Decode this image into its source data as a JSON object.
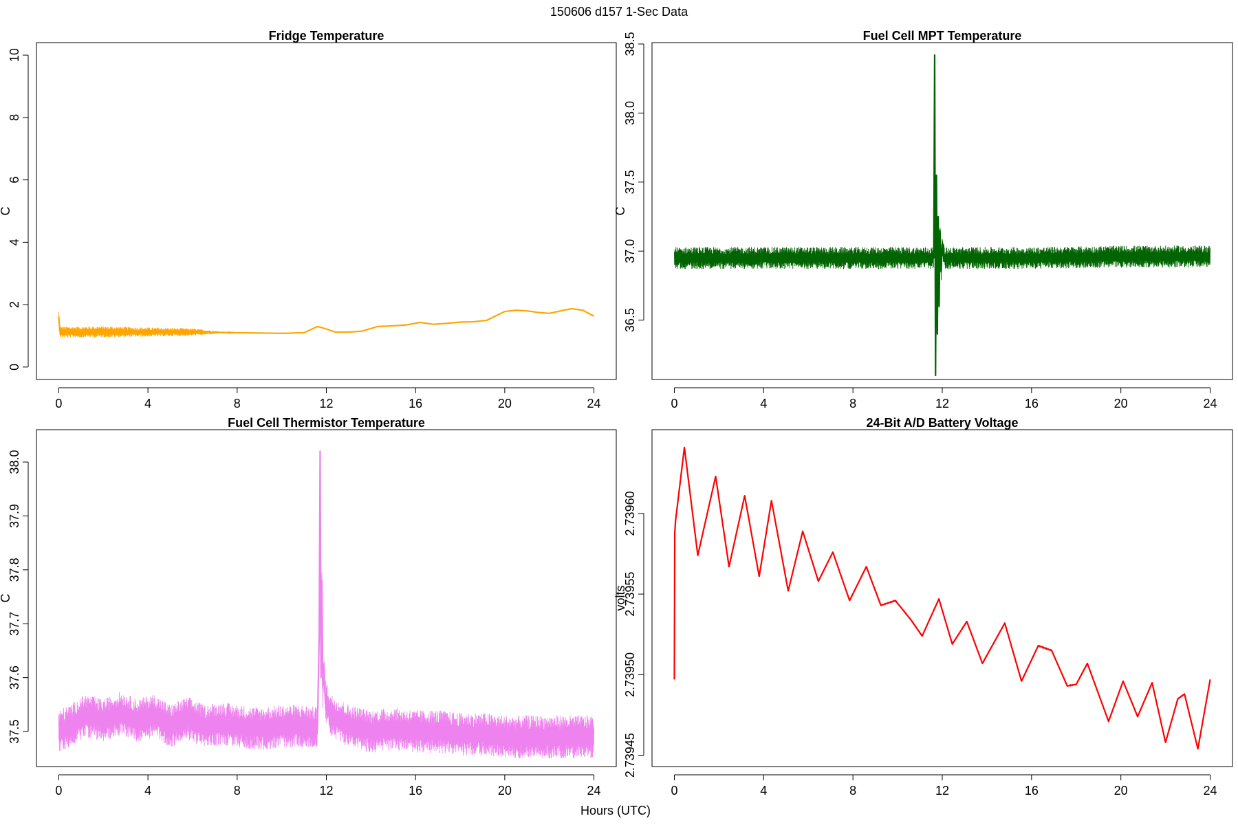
{
  "figure": {
    "suptitle": "150606   d157   1-Sec Data",
    "shared_xlabel": "Hours (UTC)"
  },
  "chart_data": [
    {
      "type": "line",
      "title": "Fridge Temperature",
      "xlabel": "",
      "ylabel": "C",
      "color": "#FFA500",
      "xlim": [
        -1,
        25
      ],
      "ylim": [
        -0.4,
        10.4
      ],
      "xticks": [
        0,
        4,
        8,
        12,
        16,
        20,
        24
      ],
      "yticks": [
        0,
        2,
        4,
        6,
        8,
        10
      ],
      "ytick_labels": [
        "0",
        "2",
        "4",
        "6",
        "8",
        "10"
      ],
      "noise_envelope": {
        "x": [
          0,
          2,
          4,
          6,
          7,
          8
        ],
        "amplitude": [
          0.18,
          0.18,
          0.15,
          0.12,
          0.05,
          0.0
        ]
      },
      "series": [
        {
          "name": "Fridge Temperature",
          "x": [
            0,
            0.05,
            0.1,
            2,
            4,
            6,
            8,
            9,
            10,
            11,
            11.6,
            12,
            12.4,
            13,
            13.6,
            14.3,
            15,
            15.6,
            16.2,
            16.8,
            17.4,
            18,
            18.6,
            19.2,
            20,
            20.5,
            21,
            21.5,
            22,
            22.5,
            23,
            23.5,
            24
          ],
          "values": [
            1.62,
            1.15,
            1.12,
            1.13,
            1.12,
            1.12,
            1.1,
            1.09,
            1.08,
            1.1,
            1.3,
            1.22,
            1.12,
            1.12,
            1.15,
            1.3,
            1.32,
            1.35,
            1.43,
            1.37,
            1.4,
            1.44,
            1.45,
            1.5,
            1.78,
            1.82,
            1.8,
            1.75,
            1.72,
            1.8,
            1.87,
            1.82,
            1.63
          ]
        }
      ]
    },
    {
      "type": "line",
      "title": "Fuel Cell MPT Temperature",
      "xlabel": "",
      "ylabel": "C",
      "color": "#006400",
      "xlim": [
        -1,
        25
      ],
      "ylim": [
        36.07,
        38.51
      ],
      "xticks": [
        0,
        4,
        8,
        12,
        16,
        20,
        24
      ],
      "yticks": [
        36.5,
        37.0,
        37.5,
        38.0,
        38.5
      ],
      "ytick_labels": [
        "36.5",
        "37.0",
        "37.5",
        "38.0",
        "38.5"
      ],
      "noise_envelope": {
        "x": [
          0,
          24
        ],
        "amplitude": [
          0.08,
          0.08
        ]
      },
      "series": [
        {
          "name": "Fuel Cell MPT Temperature",
          "x": [
            0,
            4,
            8,
            11.5,
            11.62,
            11.66,
            11.7,
            11.74,
            11.78,
            11.82,
            11.86,
            11.9,
            11.95,
            12.0,
            12.1,
            16,
            20,
            24
          ],
          "values": [
            36.95,
            36.95,
            36.95,
            36.95,
            36.95,
            38.42,
            36.1,
            37.55,
            36.4,
            37.25,
            36.6,
            37.15,
            36.85,
            37.05,
            36.95,
            36.95,
            36.96,
            36.96
          ]
        }
      ]
    },
    {
      "type": "line",
      "title": "Fuel Cell Thermistor Temperature",
      "xlabel": "",
      "ylabel": "C",
      "color": "#EE82EE",
      "xlim": [
        -1,
        25
      ],
      "ylim": [
        37.435,
        38.06
      ],
      "xticks": [
        0,
        4,
        8,
        12,
        16,
        20,
        24
      ],
      "yticks": [
        37.5,
        37.6,
        37.7,
        37.8,
        37.9,
        38.0
      ],
      "ytick_labels": [
        "37.5",
        "37.6",
        "37.7",
        "37.8",
        "37.9",
        "38.0"
      ],
      "noise_envelope": {
        "x": [
          0,
          24
        ],
        "amplitude": [
          0.04,
          0.04
        ]
      },
      "series": [
        {
          "name": "Fuel Cell Thermistor Temperature",
          "x": [
            0,
            0.5,
            1.2,
            2,
            2.8,
            3.5,
            4.3,
            5,
            5.8,
            6.5,
            7.3,
            8,
            9,
            10,
            11,
            11.6,
            11.68,
            11.72,
            11.76,
            11.8,
            11.84,
            11.88,
            11.95,
            12.2,
            13,
            14,
            15,
            16,
            17,
            18,
            19,
            20,
            21,
            22,
            23,
            24
          ],
          "values": [
            37.5,
            37.51,
            37.53,
            37.52,
            37.535,
            37.52,
            37.53,
            37.51,
            37.525,
            37.51,
            37.515,
            37.51,
            37.505,
            37.51,
            37.51,
            37.505,
            37.68,
            38.02,
            37.6,
            37.78,
            37.58,
            37.62,
            37.56,
            37.53,
            37.51,
            37.5,
            37.505,
            37.5,
            37.5,
            37.495,
            37.495,
            37.49,
            37.49,
            37.49,
            37.49,
            37.49
          ]
        }
      ]
    },
    {
      "type": "line",
      "title": "24-Bit A/D Battery Voltage",
      "xlabel": "",
      "ylabel": "volts",
      "color": "#FF0000",
      "xlim": [
        -1,
        25
      ],
      "ylim": [
        2.739443,
        2.739652
      ],
      "xticks": [
        0,
        4,
        8,
        12,
        16,
        20,
        24
      ],
      "yticks": [
        2.73945,
        2.7395,
        2.73955,
        2.7396
      ],
      "ytick_labels": [
        "2.73945",
        "2.73950",
        "2.73955",
        "2.73960"
      ],
      "noise_envelope": {
        "x": [
          0,
          24
        ],
        "amplitude": [
          4e-07,
          4e-07
        ]
      },
      "series": [
        {
          "name": "24-Bit A/D Battery Voltage",
          "x": [
            0,
            0.02,
            0.05,
            0.45,
            1.05,
            1.85,
            2.45,
            3.15,
            3.8,
            4.35,
            5.1,
            5.75,
            6.45,
            7.1,
            7.85,
            8.6,
            9.25,
            9.9,
            10.6,
            11.1,
            11.85,
            12.45,
            13.1,
            13.8,
            14.8,
            15.55,
            16.3,
            16.9,
            17.6,
            18.0,
            18.5,
            19.45,
            20.1,
            20.75,
            21.4,
            22.0,
            22.55,
            22.85,
            23.45,
            24.0
          ],
          "values": [
            2.739497,
            2.739588,
            2.739595,
            2.739641,
            2.739574,
            2.739623,
            2.739567,
            2.739611,
            2.739561,
            2.739608,
            2.739552,
            2.739589,
            2.739558,
            2.739576,
            2.739546,
            2.739567,
            2.739543,
            2.739546,
            2.739534,
            2.739524,
            2.739547,
            2.739519,
            2.739533,
            2.739507,
            2.739532,
            2.739496,
            2.739518,
            2.739515,
            2.739493,
            2.739494,
            2.739507,
            2.739471,
            2.739496,
            2.739474,
            2.739495,
            2.739458,
            2.739485,
            2.739488,
            2.739454,
            2.739497
          ]
        }
      ]
    }
  ]
}
